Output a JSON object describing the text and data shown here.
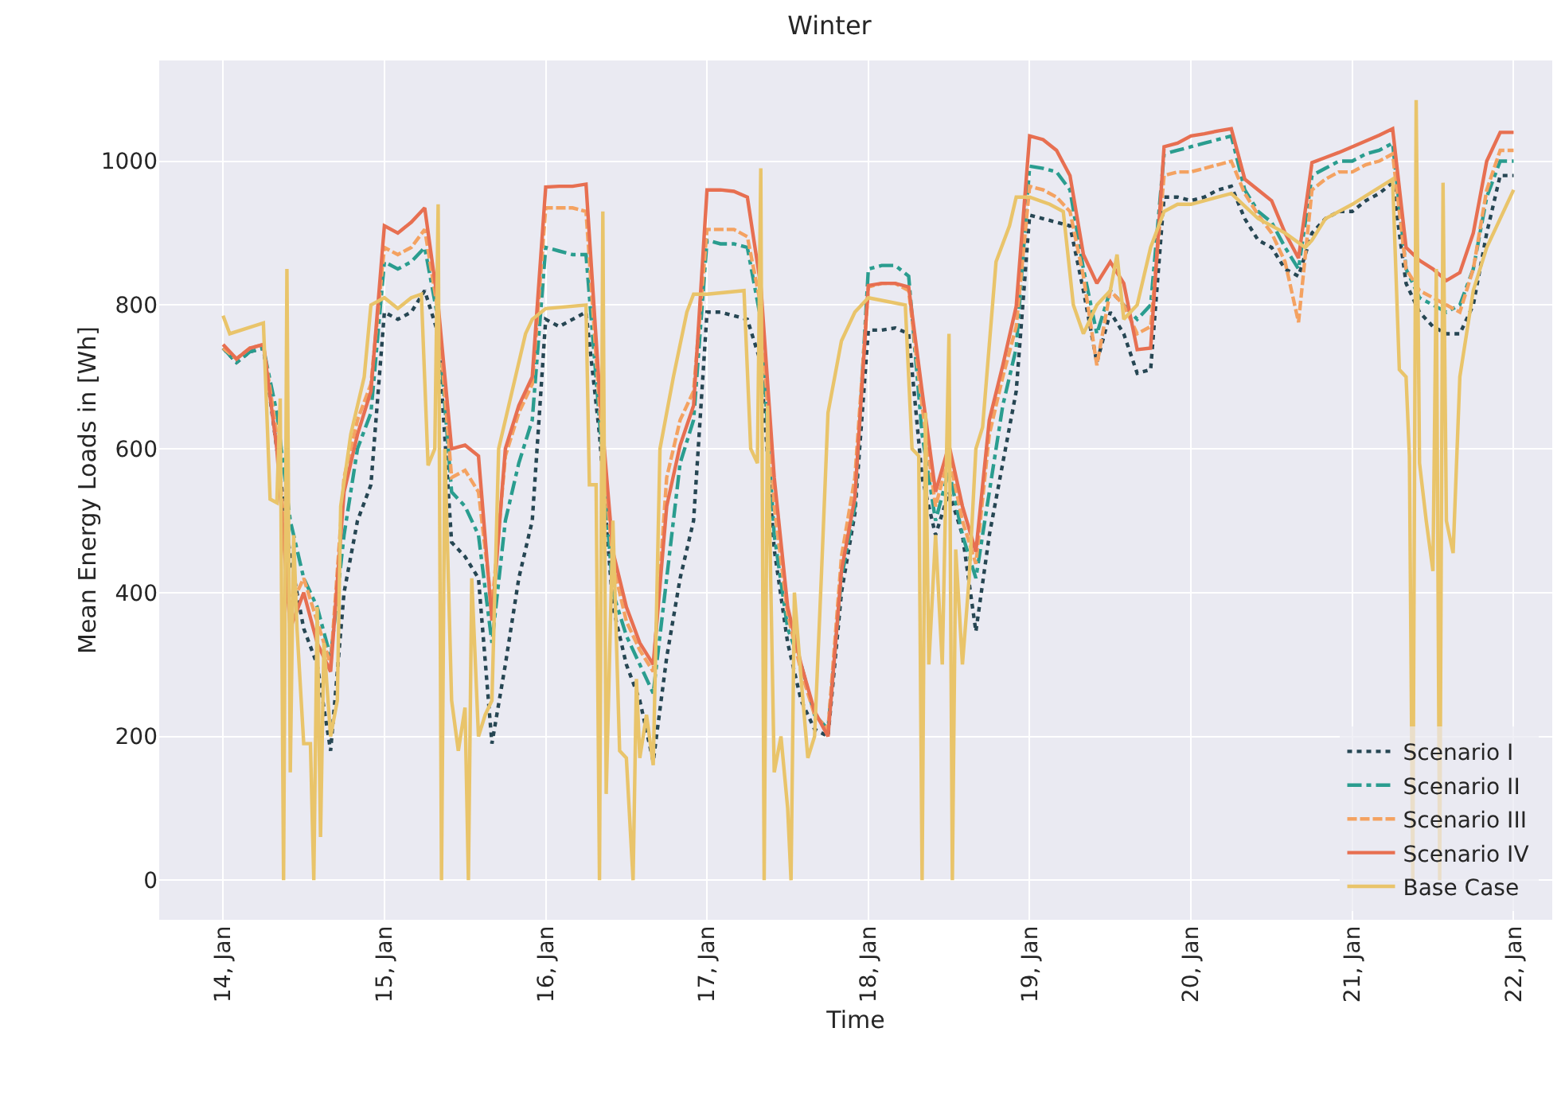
{
  "chart_data": {
    "type": "line",
    "title": "Winter",
    "xlabel": "Time",
    "ylabel": "Mean Energy Loads in [Wh]",
    "x": [
      "--01-14T00:00",
      "--01-14T02:00",
      "--01-14T04:00",
      "--01-14T06:00",
      "--01-14T08:00",
      "--01-14T10:00",
      "--01-14T12:00",
      "--01-14T14:00",
      "--01-14T16:00",
      "--01-14T18:00",
      "--01-14T20:00",
      "--01-14T22:00",
      "--01-15T00:00",
      "--01-15T02:00",
      "--01-15T04:00",
      "--01-15T06:00",
      "--01-15T08:00",
      "--01-15T10:00",
      "--01-15T12:00",
      "--01-15T14:00",
      "--01-15T16:00",
      "--01-15T18:00",
      "--01-15T20:00",
      "--01-15T22:00",
      "--01-16T00:00",
      "--01-16T02:00",
      "--01-16T04:00",
      "--01-16T06:00",
      "--01-16T08:00",
      "--01-16T10:00",
      "--01-16T12:00",
      "--01-16T14:00",
      "--01-16T16:00",
      "--01-16T18:00",
      "--01-16T20:00",
      "--01-16T22:00",
      "--01-17T00:00",
      "--01-17T02:00",
      "--01-17T04:00",
      "--01-17T06:00",
      "--01-17T08:00",
      "--01-17T10:00",
      "--01-17T12:00",
      "--01-17T14:00",
      "--01-17T16:00",
      "--01-17T18:00",
      "--01-17T20:00",
      "--01-17T22:00",
      "--01-18T00:00",
      "--01-18T02:00",
      "--01-18T04:00",
      "--01-18T06:00",
      "--01-18T08:00",
      "--01-18T10:00",
      "--01-18T12:00",
      "--01-18T14:00",
      "--01-18T16:00",
      "--01-18T18:00",
      "--01-18T20:00",
      "--01-18T22:00",
      "--01-19T00:00",
      "--01-19T02:00",
      "--01-19T04:00",
      "--01-19T06:00",
      "--01-19T08:00",
      "--01-19T10:00",
      "--01-19T12:00",
      "--01-19T14:00",
      "--01-19T16:00",
      "--01-19T18:00",
      "--01-19T20:00",
      "--01-19T22:00",
      "--01-20T00:00",
      "--01-20T02:00",
      "--01-20T04:00",
      "--01-20T06:00",
      "--01-20T08:00",
      "--01-20T10:00",
      "--01-20T12:00",
      "--01-20T14:00",
      "--01-20T16:00",
      "--01-20T18:00",
      "--01-20T20:00",
      "--01-20T22:00",
      "--01-21T00:00",
      "--01-21T02:00",
      "--01-21T04:00",
      "--01-21T06:00",
      "--01-21T08:00",
      "--01-21T10:00",
      "--01-21T12:00",
      "--01-21T14:00",
      "--01-21T16:00",
      "--01-21T18:00",
      "--01-21T20:00",
      "--01-21T22:00",
      "--01-22T00:00"
    ],
    "series": [
      {
        "name": "Scenario I",
        "color": "#264653",
        "line_style": "dotted",
        "values": [
          740,
          720,
          735,
          740,
          600,
          450,
          350,
          300,
          180,
          400,
          500,
          550,
          790,
          780,
          790,
          820,
          760,
          470,
          450,
          420,
          190,
          300,
          420,
          500,
          780,
          770,
          780,
          790,
          620,
          380,
          300,
          250,
          165,
          310,
          420,
          500,
          790,
          790,
          785,
          780,
          720,
          460,
          330,
          250,
          210,
          200,
          400,
          510,
          765,
          765,
          768,
          760,
          560,
          480,
          540,
          480,
          346,
          480,
          580,
          680,
          925,
          920,
          915,
          910,
          820,
          720,
          790,
          760,
          705,
          710,
          950,
          950,
          945,
          950,
          960,
          965,
          920,
          890,
          880,
          850,
          840,
          900,
          920,
          930,
          930,
          945,
          955,
          970,
          830,
          790,
          770,
          760,
          760,
          800,
          900,
          980,
          980
        ]
      },
      {
        "name": "Scenario II",
        "color": "#2a9d8f",
        "line_style": "dashdot",
        "values": [
          740,
          720,
          735,
          740,
          650,
          500,
          420,
          380,
          310,
          480,
          600,
          650,
          860,
          850,
          860,
          880,
          780,
          540,
          520,
          480,
          330,
          500,
          580,
          640,
          880,
          875,
          870,
          870,
          640,
          400,
          340,
          300,
          260,
          420,
          580,
          640,
          890,
          885,
          885,
          880,
          780,
          480,
          350,
          300,
          230,
          210,
          420,
          520,
          850,
          855,
          855,
          840,
          620,
          500,
          570,
          480,
          420,
          540,
          660,
          740,
          993,
          990,
          985,
          960,
          850,
          760,
          820,
          800,
          780,
          800,
          1010,
          1015,
          1020,
          1025,
          1030,
          1035,
          960,
          930,
          915,
          880,
          850,
          980,
          990,
          1000,
          1000,
          1010,
          1015,
          1025,
          850,
          810,
          800,
          790,
          800,
          850,
          950,
          1000,
          1000
        ]
      },
      {
        "name": "Scenario III",
        "color": "#f4a261",
        "line_style": "dashed",
        "values": [
          740,
          725,
          740,
          745,
          620,
          380,
          420,
          360,
          300,
          560,
          640,
          690,
          880,
          870,
          880,
          905,
          790,
          560,
          570,
          540,
          380,
          590,
          650,
          690,
          935,
          935,
          935,
          930,
          660,
          440,
          360,
          320,
          290,
          560,
          640,
          680,
          905,
          905,
          905,
          895,
          800,
          520,
          370,
          290,
          230,
          210,
          450,
          560,
          825,
          830,
          830,
          820,
          660,
          520,
          590,
          500,
          440,
          620,
          700,
          770,
          965,
          960,
          950,
          930,
          840,
          716,
          820,
          800,
          760,
          770,
          980,
          985,
          985,
          990,
          995,
          1000,
          955,
          925,
          900,
          860,
          776,
          960,
          975,
          985,
          985,
          995,
          1000,
          1010,
          850,
          820,
          810,
          800,
          790,
          850,
          960,
          1015,
          1015
        ]
      },
      {
        "name": "Scenario IV",
        "color": "#e76f51",
        "line_style": "solid",
        "values": [
          745,
          725,
          740,
          745,
          600,
          350,
          400,
          330,
          290,
          540,
          620,
          680,
          910,
          900,
          915,
          935,
          800,
          600,
          605,
          590,
          361,
          600,
          660,
          700,
          964,
          965,
          965,
          968,
          680,
          457,
          380,
          330,
          300,
          520,
          605,
          660,
          960,
          960,
          958,
          950,
          827,
          560,
          380,
          300,
          235,
          200,
          430,
          532,
          827,
          830,
          830,
          825,
          680,
          540,
          605,
          520,
          457,
          640,
          716,
          798,
          1035,
          1030,
          1015,
          980,
          870,
          830,
          860,
          830,
          738,
          740,
          1020,
          1025,
          1035,
          1038,
          1042,
          1045,
          975,
          960,
          945,
          900,
          865,
          998,
          1005,
          1012,
          1020,
          1028,
          1036,
          1045,
          880,
          862,
          850,
          834,
          845,
          900,
          1000,
          1040,
          1040
        ]
      },
      {
        "name": "Base Case",
        "color": "#e9c46a",
        "line_style": "solid",
        "x": [
          "--01-14T00:00",
          "--01-14T01:00",
          "--01-14T06:00",
          "--01-14T07:00",
          "--01-14T08:00",
          "--01-14T08:30",
          "--01-14T09:00",
          "--01-14T09:30",
          "--01-14T10:00",
          "--01-14T10:30",
          "--01-14T11:00",
          "--01-14T12:00",
          "--01-14T13:00",
          "--01-14T13:30",
          "--01-14T14:00",
          "--01-14T14:30",
          "--01-14T15:00",
          "--01-14T16:00",
          "--01-14T17:00",
          "--01-14T17:30",
          "--01-14T19:00",
          "--01-14T21:00",
          "--01-14T22:00",
          "--01-15T00:00",
          "--01-15T02:00",
          "--01-15T04:00",
          "--01-15T05:30",
          "--01-15T06:30",
          "--01-15T07:30",
          "--01-15T08:00",
          "--01-15T08:30",
          "--01-15T09:00",
          "--01-15T10:00",
          "--01-15T11:00",
          "--01-15T12:00",
          "--01-15T12:30",
          "--01-15T13:00",
          "--01-15T14:00",
          "--01-15T15:00",
          "--01-15T16:00",
          "--01-15T17:00",
          "--01-15T19:00",
          "--01-15T21:00",
          "--01-15T22:00",
          "--01-16T00:00",
          "--01-16T06:00",
          "--01-16T06:30",
          "--01-16T07:30",
          "--01-16T08:00",
          "--01-16T08:30",
          "--01-16T09:00",
          "--01-16T10:00",
          "--01-16T11:00",
          "--01-16T12:00",
          "--01-16T13:00",
          "--01-16T13:30",
          "--01-16T14:00",
          "--01-16T15:00",
          "--01-16T16:00",
          "--01-16T17:00",
          "--01-16T19:00",
          "--01-16T21:00",
          "--01-16T22:00",
          "--01-17T00:00",
          "--01-17T05:30",
          "--01-17T06:30",
          "--01-17T07:30",
          "--01-17T08:00",
          "--01-17T08:30",
          "--01-17T09:00",
          "--01-17T10:00",
          "--01-17T11:00",
          "--01-17T12:00",
          "--01-17T12:30",
          "--01-17T13:00",
          "--01-17T14:00",
          "--01-17T15:00",
          "--01-17T16:00",
          "--01-17T17:00",
          "--01-17T18:00",
          "--01-17T20:00",
          "--01-17T22:00",
          "--01-18T00:00",
          "--01-18T05:30",
          "--01-18T06:30",
          "--01-18T07:30",
          "--01-18T08:00",
          "--01-18T08:30",
          "--01-18T09:00",
          "--01-18T10:00",
          "--01-18T11:00",
          "--01-18T12:00",
          "--01-18T12:30",
          "--01-18T13:00",
          "--01-18T14:00",
          "--01-18T15:00",
          "--01-18T16:00",
          "--01-18T17:00",
          "--01-18T19:00",
          "--01-18T21:00",
          "--01-18T22:00",
          "--01-19T00:00",
          "--01-19T03:00",
          "--01-19T05:00",
          "--01-19T06:30",
          "--01-19T08:00",
          "--01-19T10:00",
          "--01-19T12:00",
          "--01-19T13:00",
          "--01-19T14:00",
          "--01-19T16:00",
          "--01-19T18:00",
          "--01-19T20:00",
          "--01-19T22:00",
          "--01-20T00:00",
          "--01-20T06:00",
          "--01-20T10:00",
          "--01-20T14:00",
          "--01-20T17:00",
          "--01-20T18:00",
          "--01-20T20:00",
          "--01-21T00:00",
          "--01-21T06:00",
          "--01-21T07:00",
          "--01-21T08:00",
          "--01-21T08:30",
          "--01-21T09:00",
          "--01-21T09:30",
          "--01-21T10:00",
          "--01-21T11:00",
          "--01-21T12:00",
          "--01-21T12:30",
          "--01-21T13:00",
          "--01-21T13:30",
          "--01-21T14:00",
          "--01-21T15:00",
          "--01-21T16:00",
          "--01-21T18:00",
          "--01-21T20:00",
          "--01-21T22:00",
          "--01-22T00:00"
        ],
        "values": [
          785,
          760,
          775,
          530,
          525,
          670,
          0,
          850,
          150,
          480,
          350,
          190,
          190,
          0,
          380,
          60,
          330,
          200,
          250,
          520,
          620,
          700,
          800,
          810,
          795,
          810,
          815,
          577,
          600,
          940,
          0,
          600,
          250,
          180,
          240,
          0,
          420,
          200,
          230,
          250,
          600,
          680,
          760,
          780,
          795,
          800,
          550,
          550,
          0,
          930,
          120,
          500,
          180,
          170,
          0,
          280,
          170,
          230,
          160,
          600,
          700,
          790,
          815,
          815,
          820,
          600,
          580,
          990,
          0,
          660,
          150,
          200,
          100,
          0,
          400,
          280,
          170,
          200,
          420,
          650,
          750,
          790,
          810,
          800,
          600,
          590,
          0,
          650,
          300,
          480,
          300,
          760,
          0,
          460,
          300,
          420,
          600,
          630,
          860,
          910,
          950,
          950,
          940,
          930,
          800,
          760,
          800,
          820,
          870,
          780,
          800,
          880,
          930,
          940,
          940,
          955,
          920,
          900,
          880,
          890,
          920,
          940,
          975,
          710,
          700,
          590,
          0,
          1085,
          580,
          500,
          430,
          850,
          0,
          970,
          500,
          455,
          700,
          820,
          880,
          920,
          960
        ]
      }
    ],
    "xlim": [
      "--01-13T14:30",
      "--01-22T05:45"
    ],
    "xticks": [
      {
        "value": "--01-14",
        "label": "14, Jan"
      },
      {
        "value": "--01-15",
        "label": "15, Jan"
      },
      {
        "value": "--01-16",
        "label": "16, Jan"
      },
      {
        "value": "--01-17",
        "label": "17, Jan"
      },
      {
        "value": "--01-18",
        "label": "18, Jan"
      },
      {
        "value": "--01-19",
        "label": "19, Jan"
      },
      {
        "value": "--01-20",
        "label": "20, Jan"
      },
      {
        "value": "--01-21",
        "label": "21, Jan"
      },
      {
        "value": "--01-22",
        "label": "22, Jan"
      }
    ],
    "ylim": [
      -55,
      1140
    ],
    "yticks": [
      0,
      200,
      400,
      600,
      800,
      1000
    ],
    "grid": true,
    "legend": "bottom right"
  }
}
